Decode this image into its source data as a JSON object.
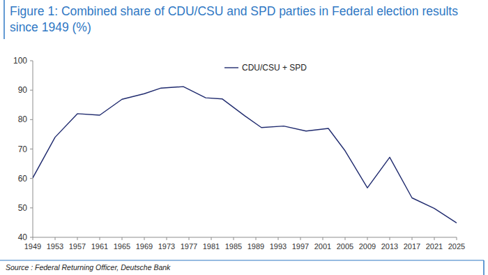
{
  "chart_data": {
    "type": "line",
    "title": "Figure 1: Combined share of CDU/CSU and SPD parties in Federal election results since 1949 (%)",
    "source": "Source : Federal Returning Officer, Deutsche Bank",
    "x": [
      1949,
      1953,
      1957,
      1961,
      1965,
      1969,
      1972,
      1976,
      1980,
      1983,
      1987,
      1990,
      1994,
      1998,
      2002,
      2005,
      2009,
      2013,
      2017,
      2021,
      2025
    ],
    "series": [
      {
        "name": "CDU/CSU + SPD",
        "color": "#1f2a6e",
        "values": [
          60.2,
          74.0,
          82.0,
          81.5,
          86.9,
          88.8,
          90.7,
          91.2,
          87.4,
          87.0,
          81.3,
          77.3,
          77.8,
          76.1,
          77.0,
          69.4,
          56.8,
          67.2,
          53.4,
          49.8,
          44.9
        ]
      }
    ],
    "xlim": [
      1949,
      2025
    ],
    "xticks": [
      1949,
      1953,
      1957,
      1961,
      1965,
      1969,
      1973,
      1977,
      1981,
      1985,
      1989,
      1993,
      1997,
      2001,
      2005,
      2009,
      2013,
      2017,
      2021,
      2025
    ],
    "ylim": [
      40,
      100
    ],
    "yticks": [
      40,
      50,
      60,
      70,
      80,
      90,
      100
    ],
    "grid": false,
    "legend": "top"
  }
}
